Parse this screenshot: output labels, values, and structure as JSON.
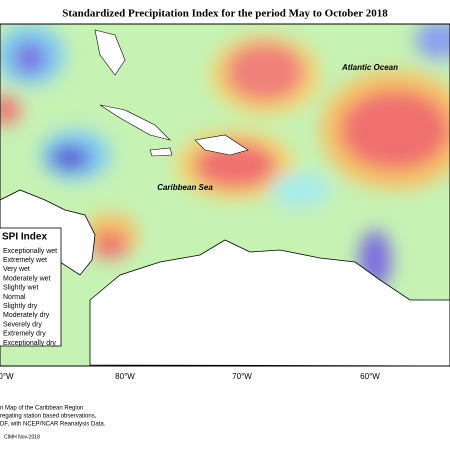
{
  "header": {
    "title": "Standardized Precipitation Index for the period May to October 2018"
  },
  "map": {
    "labels": [
      "Atlantic Ocean",
      "Caribbean Sea"
    ],
    "longitude_labels": [
      "0°W",
      "80°W",
      "70°W",
      "60°W"
    ]
  },
  "legend": {
    "title": "SPI Index",
    "items": [
      "Exceptionally wet",
      "Extremely wet",
      "Very wet",
      "Moderately wet",
      "Slightly wet",
      "Normal",
      "Slightly dry",
      "Moderately dry",
      "Severely dry",
      "Extremely dry",
      "Exceptionally dry"
    ]
  },
  "footer": {
    "lines": [
      "n Map of the Caribbean Region",
      "regating station based observations,",
      "DF, with NCEP/NCAR Reanalysis Data."
    ],
    "credit": "CIMH Nov-2018"
  }
}
